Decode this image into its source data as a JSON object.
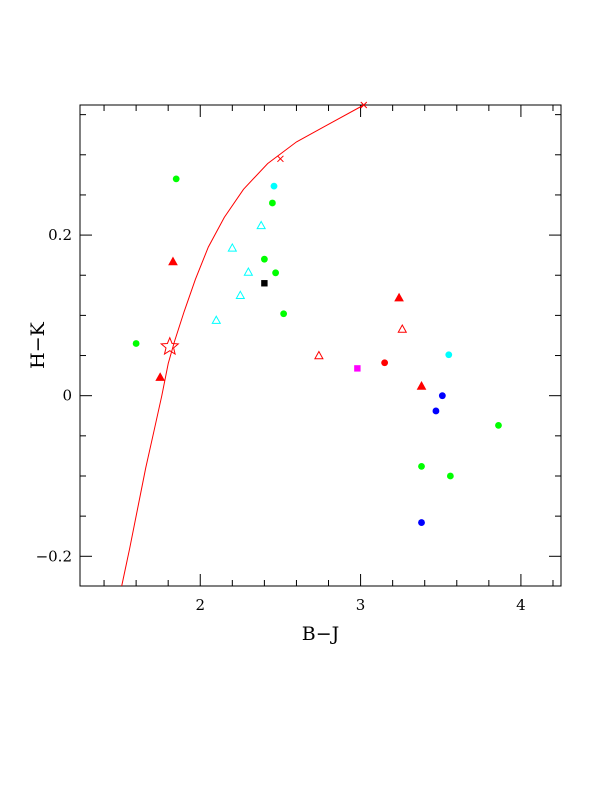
{
  "chart_data": {
    "type": "scatter",
    "xlabel": "B−J",
    "ylabel": "H−K",
    "xlim": [
      1.25,
      4.25
    ],
    "ylim": [
      -0.237,
      0.362
    ],
    "x_ticks": [
      {
        "v": 2,
        "label": "2"
      },
      {
        "v": 3,
        "label": "3"
      },
      {
        "v": 4,
        "label": "4"
      }
    ],
    "y_ticks": [
      {
        "v": -0.2,
        "label": "−0.2"
      },
      {
        "v": 0,
        "label": "0"
      },
      {
        "v": 0.2,
        "label": "0.2"
      }
    ],
    "grid": false,
    "curve": {
      "color": "#ff0000",
      "points": [
        [
          1.51,
          -0.237
        ],
        [
          1.56,
          -0.19
        ],
        [
          1.61,
          -0.14
        ],
        [
          1.66,
          -0.09
        ],
        [
          1.71,
          -0.045
        ],
        [
          1.76,
          0.0
        ],
        [
          1.8,
          0.04
        ],
        [
          1.84,
          0.068
        ],
        [
          1.9,
          0.105
        ],
        [
          1.97,
          0.145
        ],
        [
          2.05,
          0.185
        ],
        [
          2.15,
          0.222
        ],
        [
          2.27,
          0.257
        ],
        [
          2.42,
          0.289
        ],
        [
          2.6,
          0.316
        ],
        [
          2.8,
          0.338
        ],
        [
          3.02,
          0.362
        ]
      ],
      "cross_markers": [
        [
          2.5,
          0.295
        ],
        [
          3.02,
          0.362
        ]
      ]
    },
    "series": [
      {
        "marker": "circle-filled",
        "color": "#00ff00",
        "points": [
          [
            1.85,
            0.27
          ],
          [
            2.45,
            0.24
          ],
          [
            2.4,
            0.17
          ],
          [
            2.47,
            0.153
          ],
          [
            2.52,
            0.102
          ],
          [
            1.6,
            0.065
          ],
          [
            3.38,
            -0.088
          ],
          [
            3.56,
            -0.1
          ],
          [
            3.86,
            -0.037
          ]
        ]
      },
      {
        "marker": "circle-filled",
        "color": "#00ffff",
        "points": [
          [
            2.46,
            0.261
          ],
          [
            3.55,
            0.051
          ]
        ]
      },
      {
        "marker": "circle-filled",
        "color": "#0000ff",
        "points": [
          [
            3.51,
            0.0
          ],
          [
            3.47,
            -0.019
          ],
          [
            3.38,
            -0.158
          ]
        ]
      },
      {
        "marker": "circle-filled",
        "color": "#ff0000",
        "points": [
          [
            3.15,
            0.041
          ]
        ]
      },
      {
        "marker": "square-filled",
        "color": "#000000",
        "points": [
          [
            2.4,
            0.14
          ]
        ]
      },
      {
        "marker": "square-filled",
        "color": "#ff00ff",
        "points": [
          [
            2.98,
            0.034
          ]
        ]
      },
      {
        "marker": "triangle-filled",
        "color": "#ff0000",
        "points": [
          [
            1.83,
            0.167
          ],
          [
            1.75,
            0.023
          ],
          [
            3.24,
            0.122
          ],
          [
            3.38,
            0.012
          ]
        ]
      },
      {
        "marker": "triangle-open",
        "color": "#ff0000",
        "points": [
          [
            2.74,
            0.05
          ],
          [
            3.26,
            0.083
          ]
        ]
      },
      {
        "marker": "triangle-open",
        "color": "#00ffff",
        "points": [
          [
            2.38,
            0.212
          ],
          [
            2.2,
            0.184
          ],
          [
            2.3,
            0.154
          ],
          [
            2.25,
            0.125
          ],
          [
            2.1,
            0.094
          ]
        ]
      },
      {
        "marker": "star-open",
        "color": "#ff0000",
        "points": [
          [
            1.81,
            0.061
          ]
        ]
      }
    ]
  }
}
